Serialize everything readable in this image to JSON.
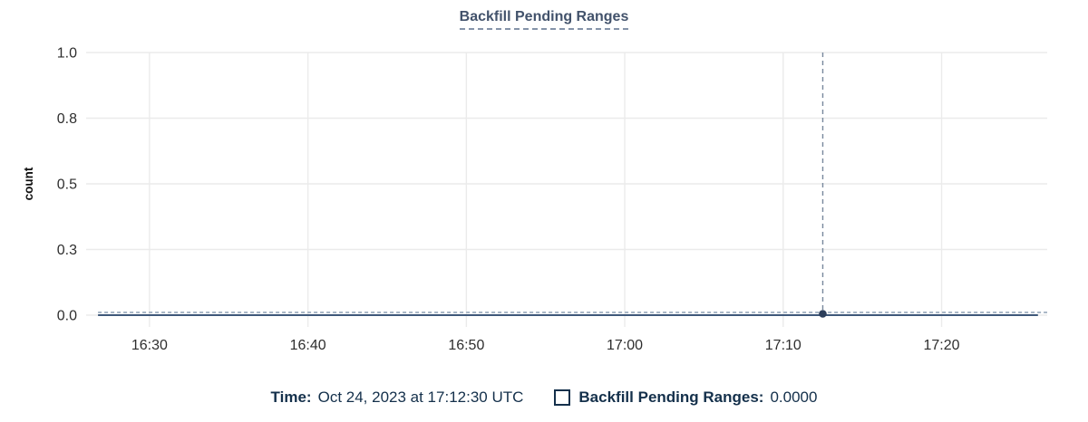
{
  "title": {
    "text": "Backfill Pending Ranges"
  },
  "tooltip": {
    "time_label": "Time:",
    "time_value": "Oct 24, 2023 at 17:12:30 UTC",
    "series_label": "Backfill Pending Ranges:",
    "series_value": "0.0000"
  },
  "colors": {
    "title": "#42526b",
    "title_underline": "#8593a9",
    "grid": "#ebebeb",
    "tick_label": "#2e2e2e",
    "series_line": "#3f587a",
    "zero_dashed_line": "#aab7c6",
    "crosshair": "#78889d",
    "data_point": "#2c3e5a",
    "legend_text": "#14304b"
  },
  "chart_data": {
    "type": "line",
    "title": "Backfill Pending Ranges",
    "xlabel": "",
    "ylabel": "count",
    "ylim": [
      0,
      1
    ],
    "yticks": [
      {
        "value": 0.0,
        "label": "0.0"
      },
      {
        "value": 0.25,
        "label": "0.3"
      },
      {
        "value": 0.5,
        "label": "0.5"
      },
      {
        "value": 0.75,
        "label": "0.8"
      },
      {
        "value": 1.0,
        "label": "1.0"
      }
    ],
    "x_domain": [
      "16:26:00",
      "17:26:40"
    ],
    "xticks": [
      "16:30",
      "16:40",
      "16:50",
      "17:00",
      "17:10",
      "17:20"
    ],
    "series": [
      {
        "name": "Backfill Pending Ranges",
        "value": 0.0,
        "start": "16:26:45",
        "end": "17:26:05"
      }
    ],
    "hover": {
      "time": "17:12:30",
      "value": 0.0
    },
    "legend_position": "bottom",
    "grid": true
  }
}
